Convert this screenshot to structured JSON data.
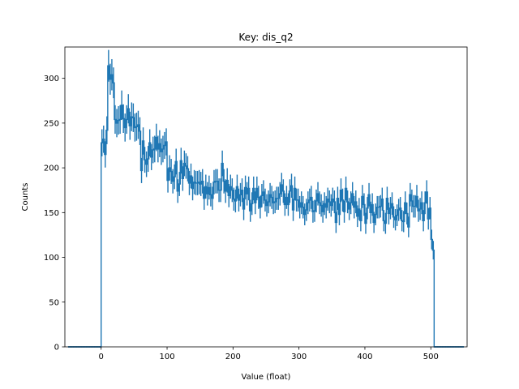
{
  "chart_data": {
    "type": "histogram",
    "title": "Key: dis_q2",
    "xlabel": "Value (float)",
    "ylabel": "Counts",
    "xlim": [
      -55,
      555
    ],
    "ylim": [
      0,
      335
    ],
    "xticks": [
      0,
      100,
      200,
      300,
      400,
      500
    ],
    "yticks": [
      0,
      50,
      100,
      150,
      200,
      250,
      300
    ],
    "bin_range": [
      -50,
      550
    ],
    "bin_width": 2.5,
    "bin_groups": [
      {
        "start": -50,
        "end": 0,
        "mean": 0,
        "sd": 0,
        "spread": 0
      },
      {
        "start": 0,
        "end": 10,
        "mean": 235,
        "sd": 8,
        "spread": 0
      },
      {
        "start": 10,
        "end": 20,
        "mean": 303,
        "sd": 9,
        "spread": 0
      },
      {
        "start": 20,
        "end": 60,
        "mean": 255,
        "sd": 9,
        "spread": 0
      },
      {
        "start": 60,
        "end": 100,
        "mean": 218,
        "sd": 11,
        "spread": 0
      },
      {
        "start": 100,
        "end": 150,
        "mean": 190,
        "sd": 9,
        "spread": 0
      },
      {
        "start": 150,
        "end": 200,
        "mean": 180,
        "sd": 9,
        "spread": 0
      },
      {
        "start": 200,
        "end": 250,
        "mean": 168,
        "sd": 10,
        "spread": 0
      },
      {
        "start": 250,
        "end": 300,
        "mean": 168,
        "sd": 8,
        "spread": 0
      },
      {
        "start": 300,
        "end": 400,
        "mean": 160,
        "sd": 9,
        "spread": 0
      },
      {
        "start": 400,
        "end": 500,
        "mean": 152,
        "sd": 10,
        "spread": 0
      },
      {
        "start": 500,
        "end": 502.5,
        "mean": 120,
        "sd": 0,
        "spread": 0
      },
      {
        "start": 502.5,
        "end": 505,
        "mean": 108,
        "sd": 0,
        "spread": 0
      },
      {
        "start": 505,
        "end": 550,
        "mean": 0,
        "sd": 0,
        "spread": 0
      }
    ],
    "style": {
      "line_color": "#1f77b4",
      "axis_color": "#000000",
      "background": "#ffffff"
    }
  }
}
